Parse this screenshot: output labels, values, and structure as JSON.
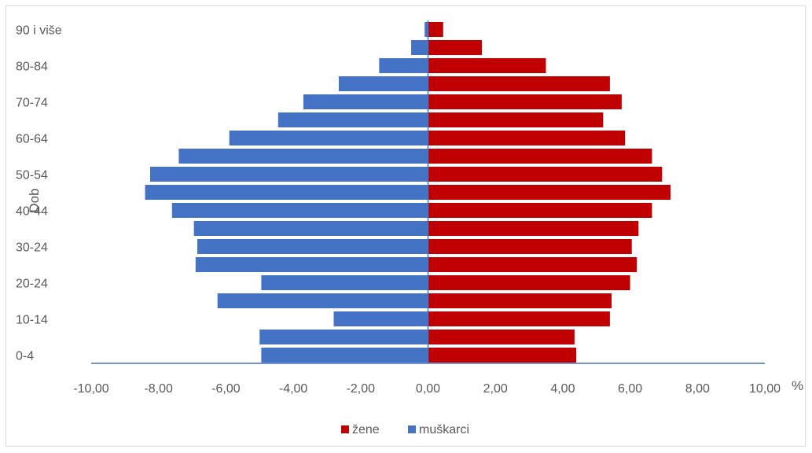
{
  "chart_data": {
    "type": "bar",
    "orientation": "horizontal",
    "stacked_diverging": true,
    "ylabel": "Dob",
    "x_unit": "%",
    "xlim": [
      -10,
      10
    ],
    "x_ticks": [
      -10,
      -8,
      -6,
      -4,
      -2,
      0,
      2,
      4,
      6,
      8,
      10
    ],
    "x_tick_labels": [
      "-10,00",
      "-8,00",
      "-6,00",
      "-4,00",
      "-2,00",
      "0,00",
      "2,00",
      "4,00",
      "6,00",
      "8,00",
      "10,00"
    ],
    "categories": [
      "0-4",
      "5-9",
      "10-14",
      "15-19",
      "20-24",
      "25-29",
      "30-24",
      "35-39",
      "40-44",
      "45-49",
      "50-54",
      "55-59",
      "60-64",
      "65-69",
      "70-74",
      "75-79",
      "80-84",
      "85-89",
      "90 i više"
    ],
    "y_tick_labels": [
      "0-4",
      "10-14",
      "20-24",
      "30-24",
      "40-44",
      "50-54",
      "60-64",
      "70-74",
      "80-84",
      "90 i više"
    ],
    "series": [
      {
        "name": "žene",
        "color": "#c00000",
        "values": [
          4.4,
          4.35,
          5.4,
          5.45,
          6.0,
          6.2,
          6.05,
          6.25,
          6.65,
          7.2,
          6.95,
          6.65,
          5.85,
          5.2,
          5.75,
          5.4,
          3.5,
          1.6,
          0.45
        ]
      },
      {
        "name": "muškarci",
        "color": "#4472c4",
        "values": [
          -4.95,
          -5.0,
          -2.8,
          -6.25,
          -4.95,
          -6.9,
          -6.85,
          -6.95,
          -7.6,
          -8.4,
          -8.25,
          -7.4,
          -5.9,
          -4.45,
          -3.7,
          -2.65,
          -1.45,
          -0.5,
          -0.1
        ]
      }
    ],
    "legend": {
      "position": "bottom",
      "entries": [
        "žene",
        "muškarci"
      ]
    },
    "grid": false
  }
}
